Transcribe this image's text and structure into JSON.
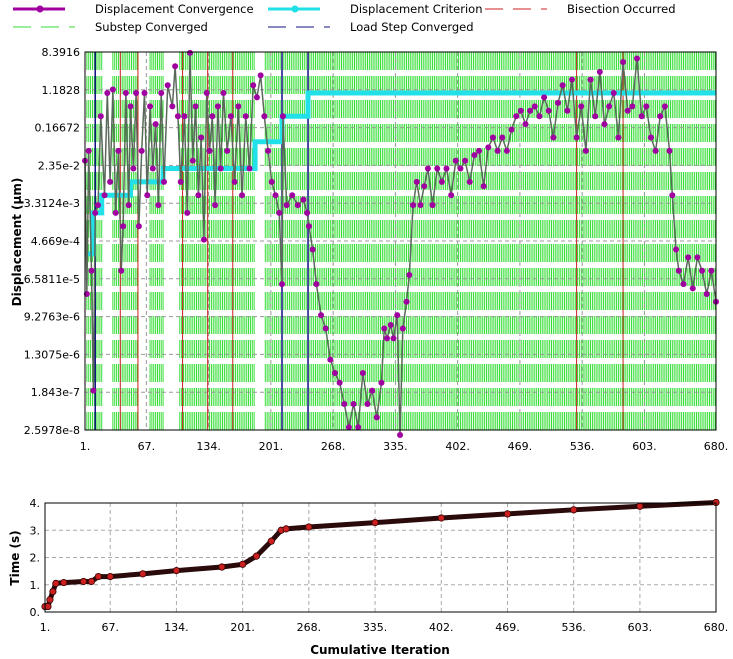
{
  "chart_data": [
    {
      "type": "line",
      "title": "",
      "ylabel": "Displacement (µm)",
      "xlabel": "",
      "yscale": "log",
      "ylim": [
        2.5978e-08,
        8.3916
      ],
      "xlim": [
        1,
        680
      ],
      "x_ticks": [
        "1.",
        "67.",
        "134.",
        "201.",
        "268.",
        "335.",
        "402.",
        "469.",
        "536.",
        "603.",
        "680."
      ],
      "x_tick_values": [
        1,
        67,
        134,
        201,
        268,
        335,
        402,
        469,
        536,
        603,
        680
      ],
      "y_ticks": [
        "8.3916",
        "1.1828",
        "0.16672",
        "2.35e-2",
        "3.3124e-3",
        "4.669e-4",
        "6.5811e-5",
        "9.2763e-6",
        "1.3075e-6",
        "1.843e-7",
        "2.5978e-8"
      ],
      "y_tick_values": [
        8.3916,
        1.1828,
        0.16672,
        0.0235,
        0.0033124,
        0.0004669,
        6.5811e-05,
        9.2763e-06,
        1.3075e-06,
        1.843e-07,
        2.5978e-08
      ],
      "legend": {
        "placement": "top",
        "entries": [
          {
            "label": "Displacement Convergence",
            "color": "#a000a0",
            "style": "line-marker"
          },
          {
            "label": "Displacement Criterion",
            "color": "#22e0e8",
            "style": "line-marker"
          },
          {
            "label": "Bisection Occurred",
            "color": "#cc2222",
            "style": "dashed"
          },
          {
            "label": "Substep Converged",
            "color": "#33dd33",
            "style": "dashed"
          },
          {
            "label": "Load Step Converged",
            "color": "#101080",
            "style": "dashed"
          }
        ]
      },
      "series": [
        {
          "name": "Displacement Convergence",
          "points": [
            [
              1,
              0.03
            ],
            [
              3,
              3e-05
            ],
            [
              5,
              0.05
            ],
            [
              8,
              0.0001
            ],
            [
              10,
              2e-07
            ],
            [
              12,
              0.002
            ],
            [
              15,
              0.003
            ],
            [
              18,
              0.3
            ],
            [
              22,
              0.005
            ],
            [
              25,
              1.0
            ],
            [
              28,
              0.01
            ],
            [
              31,
              1.2
            ],
            [
              34,
              0.002
            ],
            [
              37,
              0.05
            ],
            [
              40,
              0.0001
            ],
            [
              42,
              0.001
            ],
            [
              45,
              1.0
            ],
            [
              48,
              0.003
            ],
            [
              50,
              0.5
            ],
            [
              53,
              0.02
            ],
            [
              56,
              1.0
            ],
            [
              59,
              0.001
            ],
            [
              62,
              0.05
            ],
            [
              65,
              1.0
            ],
            [
              68,
              0.005
            ],
            [
              71,
              0.5
            ],
            [
              74,
              0.02
            ],
            [
              77,
              0.2
            ],
            [
              80,
              0.003
            ],
            [
              83,
              1.0
            ],
            [
              86,
              0.01
            ],
            [
              90,
              1.5
            ],
            [
              95,
              0.5
            ],
            [
              98,
              4.0
            ],
            [
              101,
              0.3
            ],
            [
              104,
              0.01
            ],
            [
              108,
              0.3
            ],
            [
              111,
              0.002
            ],
            [
              114,
              8.0
            ],
            [
              117,
              0.03
            ],
            [
              120,
              0.5
            ],
            [
              123,
              0.005
            ],
            [
              126,
              0.1
            ],
            [
              129,
              0.0005
            ],
            [
              132,
              1.0
            ],
            [
              135,
              0.05
            ],
            [
              138,
              0.3
            ],
            [
              141,
              0.003
            ],
            [
              144,
              0.5
            ],
            [
              147,
              0.02
            ],
            [
              150,
              1.0
            ],
            [
              154,
              0.05
            ],
            [
              158,
              0.3
            ],
            [
              162,
              0.01
            ],
            [
              166,
              0.5
            ],
            [
              170,
              0.005
            ],
            [
              174,
              0.3
            ],
            [
              178,
              0.02
            ],
            [
              182,
              1.5
            ],
            [
              186,
              0.8
            ],
            [
              190,
              2.5
            ],
            [
              194,
              0.3
            ],
            [
              198,
              0.05
            ],
            [
              202,
              0.01
            ],
            [
              206,
              0.005
            ],
            [
              210,
              0.002
            ],
            [
              213,
              5e-05
            ],
            [
              214,
              0.3
            ],
            [
              218,
              0.003
            ],
            [
              224,
              0.005
            ],
            [
              230,
              0.003
            ],
            [
              236,
              0.004
            ],
            [
              240,
              0.002
            ],
            [
              242,
              0.001
            ],
            [
              246,
              0.0003
            ],
            [
              250,
              5e-05
            ],
            [
              255,
              1e-05
            ],
            [
              260,
              5e-06
            ],
            [
              265,
              1e-06
            ],
            [
              270,
              5e-07
            ],
            [
              275,
              3e-07
            ],
            [
              280,
              1e-07
            ],
            [
              285,
              3e-08
            ],
            [
              290,
              1e-07
            ],
            [
              295,
              3e-08
            ],
            [
              300,
              5e-07
            ],
            [
              305,
              1e-07
            ],
            [
              310,
              2e-07
            ],
            [
              315,
              5e-08
            ],
            [
              320,
              3e-07
            ],
            [
              323,
              5e-06
            ],
            [
              326,
              3e-06
            ],
            [
              330,
              6e-06
            ],
            [
              333,
              3e-06
            ],
            [
              337,
              1e-05
            ],
            [
              340,
              2e-08
            ],
            [
              343,
              5e-06
            ],
            [
              347,
              2e-05
            ],
            [
              350,
              8e-05
            ],
            [
              354,
              0.003
            ],
            [
              358,
              0.01
            ],
            [
              362,
              0.003
            ],
            [
              366,
              0.008
            ],
            [
              370,
              0.02
            ],
            [
              375,
              0.003
            ],
            [
              380,
              0.02
            ],
            [
              385,
              0.01
            ],
            [
              390,
              0.02
            ],
            [
              395,
              0.005
            ],
            [
              400,
              0.03
            ],
            [
              405,
              0.02
            ],
            [
              410,
              0.03
            ],
            [
              415,
              0.01
            ],
            [
              420,
              0.04
            ],
            [
              425,
              0.05
            ],
            [
              430,
              0.008
            ],
            [
              435,
              0.06
            ],
            [
              440,
              0.1
            ],
            [
              445,
              0.05
            ],
            [
              450,
              0.1
            ],
            [
              455,
              0.05
            ],
            [
              460,
              0.15
            ],
            [
              465,
              0.3
            ],
            [
              470,
              0.4
            ],
            [
              475,
              0.2
            ],
            [
              480,
              0.4
            ],
            [
              485,
              0.5
            ],
            [
              490,
              0.3
            ],
            [
              495,
              0.8
            ],
            [
              500,
              0.4
            ],
            [
              505,
              0.1
            ],
            [
              510,
              0.6
            ],
            [
              515,
              1.5
            ],
            [
              520,
              0.4
            ],
            [
              525,
              2.0
            ],
            [
              530,
              0.1
            ],
            [
              535,
              0.5
            ],
            [
              540,
              0.05
            ],
            [
              545,
              2.0
            ],
            [
              550,
              0.3
            ],
            [
              555,
              3.0
            ],
            [
              560,
              0.2
            ],
            [
              565,
              0.5
            ],
            [
              570,
              1.0
            ],
            [
              575,
              0.1
            ],
            [
              580,
              5.0
            ],
            [
              585,
              0.4
            ],
            [
              590,
              0.5
            ],
            [
              595,
              6.0
            ],
            [
              600,
              0.3
            ],
            [
              605,
              0.5
            ],
            [
              610,
              0.1
            ],
            [
              615,
              0.05
            ],
            [
              620,
              0.3
            ],
            [
              625,
              0.5
            ],
            [
              630,
              0.05
            ],
            [
              633,
              0.005
            ],
            [
              637,
              0.0003
            ],
            [
              640,
              0.0001
            ],
            [
              645,
              5e-05
            ],
            [
              650,
              0.0002
            ],
            [
              655,
              4e-05
            ],
            [
              660,
              0.0002
            ],
            [
              665,
              0.0001
            ],
            [
              670,
              3e-05
            ],
            [
              675,
              0.0001
            ],
            [
              680,
              2e-05
            ]
          ]
        },
        {
          "name": "Displacement Criterion",
          "steps": [
            [
              1,
              10,
              0.00024
            ],
            [
              10,
              19,
              0.002
            ],
            [
              19,
              50,
              0.005
            ],
            [
              50,
              85,
              0.01
            ],
            [
              85,
              184,
              0.02
            ],
            [
              184,
              213,
              0.08
            ],
            [
              213,
              241,
              0.3
            ],
            [
              241,
              680,
              1.0
            ]
          ]
        }
      ],
      "substep_converged_ranges": [
        [
          3,
          20
        ],
        [
          31,
          58
        ],
        [
          71,
          85
        ],
        [
          103,
          184
        ],
        [
          195,
          680
        ]
      ],
      "substep_converged_step": 2,
      "bisection_occurred": [
        39,
        58,
        106,
        133,
        160,
        530,
        580
      ],
      "load_step_converged": [
        12,
        213,
        241
      ]
    },
    {
      "type": "scatter",
      "title": "",
      "xlabel": "Cumulative Iteration",
      "ylabel": "Time (s)",
      "xlim": [
        1,
        680
      ],
      "ylim": [
        0,
        4
      ],
      "x_ticks": [
        "1.",
        "67.",
        "134.",
        "201.",
        "268.",
        "335.",
        "402.",
        "469.",
        "536.",
        "603.",
        "680."
      ],
      "x_tick_values": [
        1,
        67,
        134,
        201,
        268,
        335,
        402,
        469,
        536,
        603,
        680
      ],
      "y_ticks": [
        "4.",
        "3.",
        "2.",
        "1.",
        "0."
      ],
      "y_tick_values": [
        4,
        3,
        2,
        1,
        0
      ],
      "series": [
        {
          "name": "Time",
          "color": "#cc2020",
          "points": [
            [
              1,
              0.2
            ],
            [
              4,
              0.2
            ],
            [
              6,
              0.45
            ],
            [
              9,
              0.75
            ],
            [
              12,
              1.05
            ],
            [
              20,
              1.08
            ],
            [
              40,
              1.12
            ],
            [
              48,
              1.12
            ],
            [
              55,
              1.3
            ],
            [
              67,
              1.3
            ],
            [
              100,
              1.4
            ],
            [
              134,
              1.52
            ],
            [
              180,
              1.65
            ],
            [
              201,
              1.75
            ],
            [
              215,
              2.05
            ],
            [
              230,
              2.6
            ],
            [
              240,
              3.0
            ],
            [
              245,
              3.05
            ],
            [
              268,
              3.12
            ],
            [
              335,
              3.28
            ],
            [
              402,
              3.45
            ],
            [
              469,
              3.6
            ],
            [
              536,
              3.75
            ],
            [
              603,
              3.88
            ],
            [
              680,
              4.02
            ]
          ]
        }
      ]
    }
  ]
}
